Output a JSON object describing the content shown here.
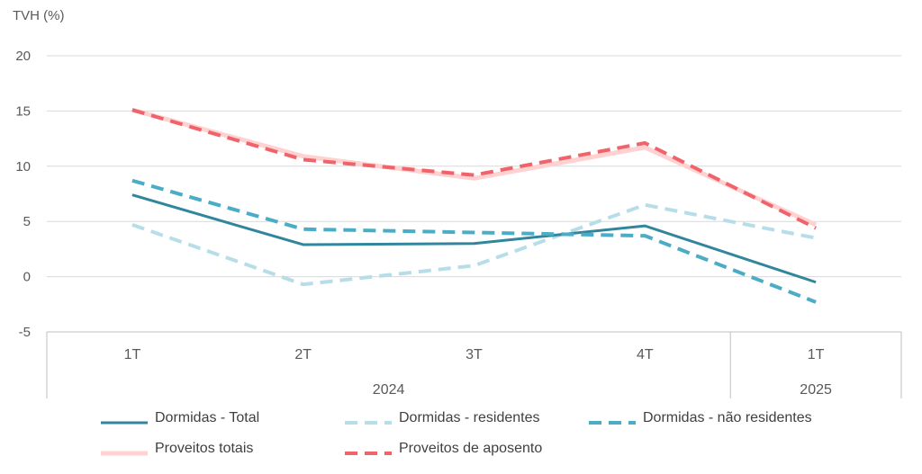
{
  "chart_data": {
    "type": "line",
    "ylabel": "TVH (%)",
    "ylim": [
      -5,
      20
    ],
    "yticks": [
      20,
      15,
      10,
      5,
      0,
      -5
    ],
    "categories": [
      "1T",
      "2T",
      "3T",
      "4T",
      "1T"
    ],
    "groups": [
      {
        "label": "2024",
        "span": 4
      },
      {
        "label": "2025",
        "span": 1
      }
    ],
    "grid": true,
    "legend_position": "bottom",
    "series": [
      {
        "name": "Dormidas - Total",
        "values": [
          7.4,
          2.9,
          3.0,
          4.6,
          -0.5
        ],
        "color": "#31859c",
        "style": "solid"
      },
      {
        "name": "Dormidas - residentes",
        "values": [
          4.7,
          -0.7,
          1.0,
          6.5,
          3.5
        ],
        "color": "#b7dee8",
        "style": "dashed"
      },
      {
        "name": "Dormidas - não residentes",
        "values": [
          8.7,
          4.3,
          4.0,
          3.7,
          -2.3
        ],
        "color": "#4bacc6",
        "style": "dashed"
      },
      {
        "name": "Proveitos totais",
        "values": [
          15.1,
          10.9,
          8.9,
          11.7,
          4.7
        ],
        "color": "#ffd1d1",
        "style": "solid-thick"
      },
      {
        "name": "Proveitos de aposento",
        "values": [
          15.1,
          10.6,
          9.2,
          12.1,
          4.4
        ],
        "color": "#f0636b",
        "style": "dashed"
      }
    ]
  }
}
